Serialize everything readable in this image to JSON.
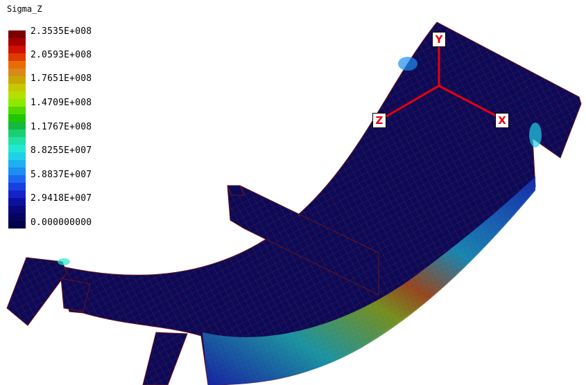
{
  "legend": {
    "title": "Sigma_Z",
    "colors": [
      "#7a0000",
      "#a50000",
      "#d11000",
      "#e03a00",
      "#e86c00",
      "#d78a1a",
      "#c8a800",
      "#c8c800",
      "#b4e000",
      "#8ee800",
      "#50d800",
      "#1ec800",
      "#16b840",
      "#18d070",
      "#20e0a8",
      "#22e8d0",
      "#20d0e8",
      "#1cb0f0",
      "#1d8ef2",
      "#1a68f0",
      "#1840e0",
      "#1422c8",
      "#0c10a0",
      "#080878",
      "#050560",
      "#03034a"
    ],
    "labels": [
      "2.3535E+008",
      "2.0593E+008",
      "1.7651E+008",
      "1.4709E+008",
      "1.1767E+008",
      "8.8255E+007",
      "5.8837E+007",
      "2.9418E+007",
      "0.000000000"
    ]
  },
  "axes": {
    "x": "X",
    "y": "Y",
    "z": "Z"
  },
  "colors": {
    "mesh_base": "#0a0a5a",
    "mesh_lines": "#8b1e1e",
    "axis_lines": "#e8000b"
  }
}
